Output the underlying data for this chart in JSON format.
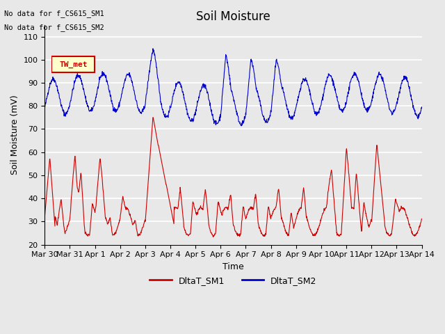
{
  "title": "Soil Moisture",
  "ylabel": "Soil Moisture (mV)",
  "xlabel": "Time",
  "ylim": [
    20,
    115
  ],
  "yticks": [
    20,
    30,
    40,
    50,
    60,
    70,
    80,
    90,
    100,
    110
  ],
  "annotation_text1": "No data for f_CS615_SM1",
  "annotation_text2": "No data for f_CS615_SM2",
  "legend_label1": "DltaT_SM1",
  "legend_label2": "DltaT_SM2",
  "legend_color1": "#cc0000",
  "legend_color2": "#0000cc",
  "tw_met_label": "TW_met",
  "tw_met_color": "#cc0000",
  "tw_met_bg": "#ffffcc",
  "background_color": "#e8e8e8",
  "grid_color": "#ffffff",
  "title_fontsize": 12,
  "axis_fontsize": 9,
  "tick_fontsize": 8
}
